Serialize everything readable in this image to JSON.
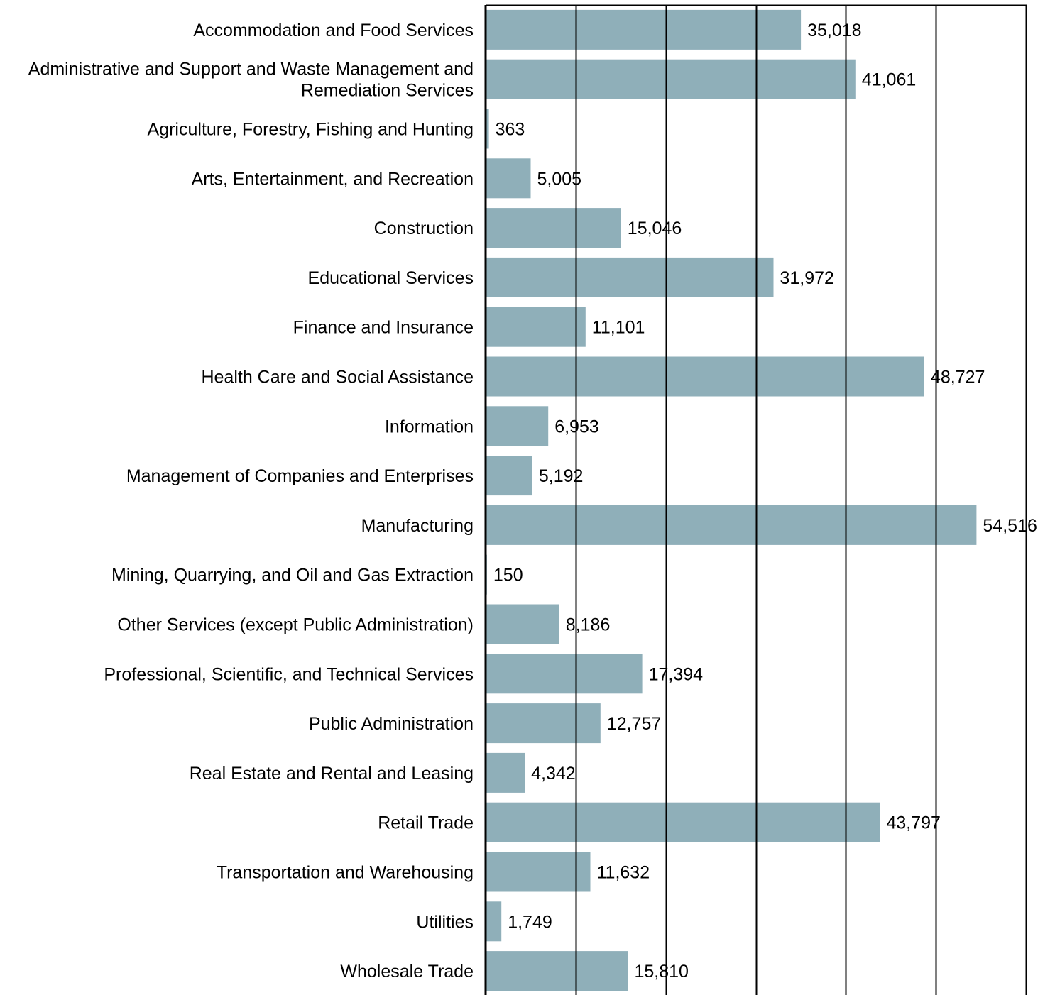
{
  "chart_data": {
    "type": "bar",
    "orientation": "horizontal",
    "categories": [
      [
        "Accommodation and Food Services"
      ],
      [
        "Administrative and Support and Waste Management and",
        "Remediation Services"
      ],
      [
        "Agriculture, Forestry, Fishing and Hunting"
      ],
      [
        "Arts, Entertainment, and Recreation"
      ],
      [
        "Construction"
      ],
      [
        "Educational Services"
      ],
      [
        "Finance and Insurance"
      ],
      [
        "Health Care and Social Assistance"
      ],
      [
        "Information"
      ],
      [
        "Management of Companies and Enterprises"
      ],
      [
        "Manufacturing"
      ],
      [
        "Mining, Quarrying, and Oil and Gas Extraction"
      ],
      [
        "Other Services (except Public Administration)"
      ],
      [
        "Professional, Scientific, and Technical Services"
      ],
      [
        "Public Administration"
      ],
      [
        "Real Estate and Rental and Leasing"
      ],
      [
        "Retail Trade"
      ],
      [
        "Transportation and Warehousing"
      ],
      [
        "Utilities"
      ],
      [
        "Wholesale Trade"
      ]
    ],
    "values": [
      35018,
      41061,
      363,
      5005,
      15046,
      31972,
      11101,
      48727,
      6953,
      5192,
      54516,
      150,
      8186,
      17394,
      12757,
      4342,
      43797,
      11632,
      1749,
      15810
    ],
    "value_labels": [
      "35,018",
      "41,061",
      "363",
      "5,005",
      "15,046",
      "31,972",
      "11,101",
      "48,727",
      "6,953",
      "5,192",
      "54,516",
      "150",
      "8,186",
      "17,394",
      "12,757",
      "4,342",
      "43,797",
      "11,632",
      "1,749",
      "15,810"
    ],
    "xlim": [
      0,
      60000
    ],
    "x_gridlines": [
      10000,
      20000,
      30000,
      40000,
      50000,
      60000
    ],
    "grid": true,
    "legend": "none",
    "bar_color": "#8fafb9",
    "axis_color": "#000000",
    "title": "",
    "xlabel": "",
    "ylabel": ""
  }
}
